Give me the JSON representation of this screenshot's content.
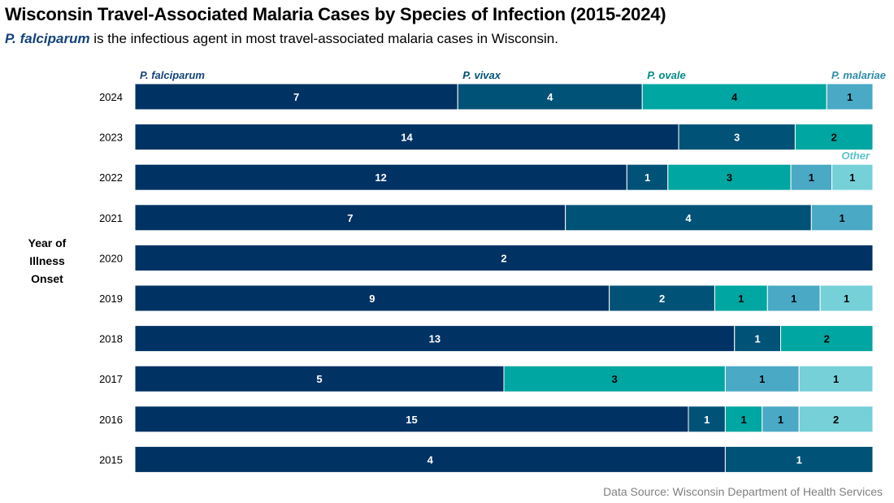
{
  "title": "Wisconsin Travel-Associated Malaria Cases by Species of Infection (2015-2024)",
  "subtitle": {
    "emphasis": "P. falciparum",
    "rest": " is the infectious agent in most travel-associated malaria cases in Wisconsin."
  },
  "source": "Data Source: Wisconsin Department of Health Services",
  "chart_data": {
    "type": "bar",
    "orientation": "horizontal",
    "stacking": "percent",
    "title": "Wisconsin Travel-Associated Malaria Cases by Species of Infection (2015-2024)",
    "ylabel": "Year of Illness Onset",
    "xlabel": "",
    "grid": false,
    "legend": "inline labels above bars",
    "categories": [
      "2024",
      "2023",
      "2022",
      "2021",
      "2020",
      "2019",
      "2018",
      "2017",
      "2016",
      "2015"
    ],
    "series": [
      {
        "name": "P. falciparum",
        "color": "#003263",
        "label_color": "#ffffff",
        "name_color": "#14427a",
        "values": [
          7,
          14,
          12,
          7,
          2,
          9,
          13,
          5,
          15,
          4
        ]
      },
      {
        "name": "P. vivax",
        "color": "#015277",
        "label_color": "#ffffff",
        "name_color": "#015277",
        "values": [
          4,
          3,
          1,
          4,
          0,
          2,
          1,
          0,
          1,
          1
        ]
      },
      {
        "name": "P. ovale",
        "color": "#00a6a1",
        "label_color": "#000000",
        "name_color": "#008b87",
        "values": [
          4,
          2,
          3,
          0,
          0,
          1,
          2,
          3,
          1,
          0
        ]
      },
      {
        "name": "P. malariae",
        "color": "#4aa9c5",
        "label_color": "#000000",
        "name_color": "#2d8ca8",
        "values": [
          1,
          0,
          1,
          1,
          0,
          1,
          0,
          1,
          1,
          0
        ]
      },
      {
        "name": "Other",
        "color": "#75d0d8",
        "label_color": "#000000",
        "name_color": "#58c2cc",
        "values": [
          0,
          0,
          1,
          0,
          0,
          1,
          0,
          1,
          2,
          0
        ]
      }
    ],
    "series_label_rows": {
      "P. falciparum": "2024",
      "P. vivax": "2024",
      "P. ovale": "2024",
      "P. malariae": "2024",
      "Other": "2022"
    },
    "xlim": [
      0,
      100
    ]
  }
}
